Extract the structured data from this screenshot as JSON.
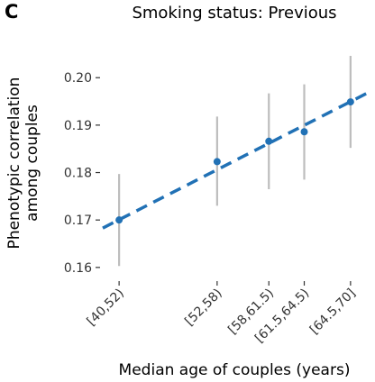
{
  "panel_label": "C",
  "chart_data": {
    "type": "scatter",
    "title": "Smoking status: Previous",
    "xlabel": "Median age of couples (years)",
    "ylabel_lines": [
      "Phenotypic correlation",
      "among couples"
    ],
    "categories": [
      "[40,52)",
      "[52,58)",
      "[58,61.5)",
      "[61.5,64.5)",
      "[64.5,70]"
    ],
    "x": [
      46,
      55,
      59.75,
      63,
      67.25
    ],
    "y": [
      0.17,
      0.1823,
      0.1866,
      0.1886,
      0.1949
    ],
    "ci_low": [
      0.1603,
      0.173,
      0.1765,
      0.1785,
      0.1852
    ],
    "ci_high": [
      0.1797,
      0.1918,
      0.1967,
      0.1986,
      0.2046
    ],
    "trend_line": {
      "x": [
        44.5,
        69
      ],
      "y": [
        0.1683,
        0.197
      ],
      "style": "dashed"
    },
    "yticks": [
      0.16,
      0.17,
      0.18,
      0.19,
      0.2
    ],
    "ytick_labels": [
      "0.16",
      "0.17",
      "0.18",
      "0.19",
      "0.20"
    ],
    "xlim": [
      44.5,
      69
    ],
    "ylim": [
      0.1575,
      0.2065
    ],
    "grid": false,
    "colors": {
      "point": "#2171b5",
      "trend": "#2171b5",
      "errorbar": "#bdbdbd",
      "axis": "#333333"
    }
  }
}
